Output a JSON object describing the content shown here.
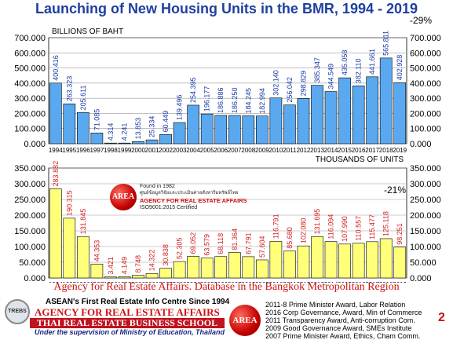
{
  "header": {
    "title": "Launching of New Housing Units in the BMR, 1994 - 2019"
  },
  "chart_data": [
    {
      "type": "bar",
      "unit_label": "BILLIONS OF BAHT",
      "change_label": "-29%",
      "categories": [
        "1994",
        "1995",
        "1996",
        "1997",
        "1998",
        "1999",
        "2000",
        "2001",
        "2002",
        "2003",
        "2004",
        "2005",
        "2006",
        "2007",
        "2008",
        "2009",
        "2010",
        "2011",
        "2012",
        "2013",
        "2014",
        "2015",
        "2016",
        "2017",
        "2018",
        "2019"
      ],
      "values": [
        400.416,
        263.323,
        205.611,
        71.085,
        4.314,
        4.241,
        13.853,
        25.334,
        60.449,
        139.496,
        254.395,
        196.177,
        186.886,
        186.25,
        184.245,
        182.994,
        302.14,
        256.042,
        298.829,
        385.347,
        344.549,
        435.058,
        382.11,
        441.661,
        565.811,
        402.928
      ],
      "value_labels": [
        "400.416",
        "263.323",
        "205.611",
        "71.085",
        "4.314",
        "4.241",
        "13.853",
        "25.334",
        "60.449",
        "139.496",
        "254.395",
        "196.177",
        "186.886",
        "186.250",
        "184.245",
        "182.994",
        "302.140",
        "256.042",
        "298.829",
        "385.347",
        "344.549",
        "435.058",
        "382.110",
        "441.661",
        "565.811",
        "402.928"
      ],
      "ylim": [
        0,
        700
      ],
      "yticks": [
        "0.000",
        "100.000",
        "200.000",
        "300.000",
        "400.000",
        "500.000",
        "600.000",
        "700.000"
      ],
      "bar_color": "#5aa9f0",
      "label_color": "#1a3aa8"
    },
    {
      "type": "bar",
      "unit_label": "THOUSANDS OF UNITS",
      "change_label": "-21%",
      "categories": [
        "1994",
        "1995",
        "1996",
        "1997",
        "1998",
        "1999",
        "2000",
        "2001",
        "2002",
        "2003",
        "2004",
        "2005",
        "2006",
        "2007",
        "2008",
        "2009",
        "2010",
        "2011",
        "2012",
        "2013",
        "2014",
        "2015",
        "2016",
        "2017",
        "2018",
        "2019"
      ],
      "values": [
        283.882,
        190.315,
        131.845,
        44.353,
        3.421,
        4.149,
        8.748,
        14.322,
        30.838,
        52.305,
        69.052,
        63.579,
        68.118,
        81.364,
        67.791,
        57.604,
        116.791,
        85.68,
        102.08,
        131.695,
        116.094,
        107.99,
        110.557,
        115.477,
        125.118,
        98.251
      ],
      "value_labels": [
        "283.882",
        "190.315",
        "131.845",
        "44.353",
        "3.421",
        "4.149",
        "8.748",
        "14.322",
        "30.838",
        "52.305",
        "69.052",
        "63.579",
        "68.118",
        "81.364",
        "67.791",
        "57.604",
        "116.791",
        "85.680",
        "102.080",
        "131.695",
        "116.094",
        "107.990",
        "110.557",
        "115.477",
        "125.118",
        "98.251"
      ],
      "ylim": [
        0,
        350
      ],
      "yticks": [
        "0.000",
        "50.000",
        "100.000",
        "150.000",
        "200.000",
        "250.000",
        "300.000",
        "350.000"
      ],
      "bar_color": "#ffff7a",
      "label_color": "#d02020"
    }
  ],
  "inset": {
    "badge": "AREA",
    "line1": "Found in 1982",
    "line2": "ศูนย์ข้อมูลวิจัยและประเมินค่าอสังหาริมทรัพย์ไทย",
    "line3": "AGENCY FOR REAL ESTATE AFFAIRS",
    "line4": "ISO9001:2015 Certified"
  },
  "source": "Agency for Real Estate Affairs. Database in the Bangkok Metropolitan Region",
  "footer": {
    "logo": "TREBS",
    "tagline": "ASEAN's First Real Estate Info Centre Since 1994",
    "agency": "AGENCY FOR REAL ESTATE AFFAIRS",
    "school": "THAI REAL ESTATE BUSINESS SCHOOL",
    "supervision": "Under the supervision of Ministry of Education, Thailand",
    "badge": "AREA",
    "awards": [
      "2011-8 Prime Minister Award, Labor Relation",
      "2016 Corp Governance, Award, Min of Commerce",
      "2011 Transparency Award, Anti-corruption Com.",
      "2009 Good Governance Award, SMEs Institute",
      "2007 Prime Minister Award, Ethics, Cham Comm."
    ]
  },
  "page_number": "2"
}
